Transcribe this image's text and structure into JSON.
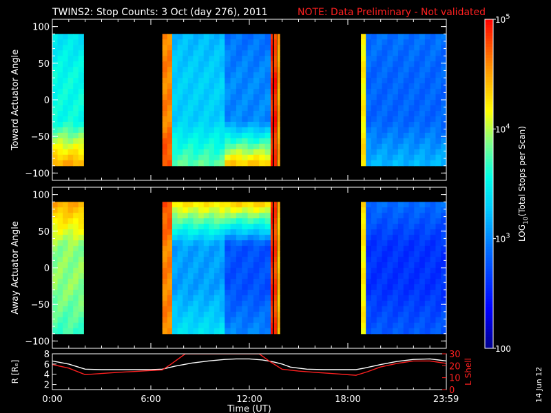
{
  "title": "TWINS2: Stop Counts:  3 Oct (day 276), 2011",
  "note": "NOTE: Data Preliminary - Not validated",
  "date_stamp": "14 Jun 12",
  "colors": {
    "background": "#000000",
    "axis": "#ffffff",
    "note": "#ff2020",
    "r_line": "#ffffff",
    "lshell_line": "#ff2020"
  },
  "chart_data": [
    {
      "type": "heatmap",
      "ylabel": "Toward Actuator Angle",
      "ylim": [
        -110,
        110
      ],
      "yticks": [
        100,
        50,
        0,
        -50,
        -100
      ],
      "ytick_labels": [
        "100",
        "50",
        "0",
        "−50",
        "−100"
      ],
      "xlim_hours": [
        0,
        24
      ],
      "data_angle_range": [
        -90,
        90
      ],
      "color_scale": "log10 counts, 100 to 1e5",
      "segments": [
        {
          "start_h": 0.0,
          "end_h": 1.9,
          "base_log": 3.55,
          "low_angle_log": 4.5,
          "high_angle_log": 3.4
        },
        {
          "start_h": 6.7,
          "end_h": 7.3,
          "base_log": 4.6,
          "low_angle_log": 4.8,
          "high_angle_log": 4.6
        },
        {
          "start_h": 7.3,
          "end_h": 10.5,
          "base_log": 3.3,
          "low_angle_log": 3.8,
          "high_angle_log": 3.2
        },
        {
          "start_h": 10.5,
          "end_h": 13.3,
          "base_log": 3.0,
          "low_angle_log": 4.4,
          "high_angle_log": 2.9
        },
        {
          "start_h": 13.3,
          "end_h": 13.4,
          "base_log": 4.9,
          "low_angle_log": 4.9,
          "high_angle_log": 4.9
        },
        {
          "start_h": 13.5,
          "end_h": 13.65,
          "base_log": 4.9,
          "low_angle_log": 4.8,
          "high_angle_log": 4.7
        },
        {
          "start_h": 13.7,
          "end_h": 13.85,
          "base_log": 4.5,
          "low_angle_log": 4.5,
          "high_angle_log": 4.5
        },
        {
          "start_h": 18.8,
          "end_h": 19.1,
          "base_log": 4.2,
          "low_angle_log": 4.3,
          "high_angle_log": 4.2
        },
        {
          "start_h": 19.1,
          "end_h": 24.0,
          "base_log": 2.85,
          "low_angle_log": 3.2,
          "high_angle_log": 2.9
        }
      ]
    },
    {
      "type": "heatmap",
      "ylabel": "Away Actuator Angle",
      "ylim": [
        -110,
        110
      ],
      "yticks": [
        100,
        50,
        0,
        -50,
        -100
      ],
      "ytick_labels": [
        "100",
        "50",
        "0",
        "−50",
        "−100"
      ],
      "xlim_hours": [
        0,
        24
      ],
      "data_angle_range": [
        -90,
        90
      ],
      "color_scale": "log10 counts, 100 to 1e5",
      "segments": [
        {
          "start_h": 0.0,
          "end_h": 1.9,
          "base_log": 3.9,
          "low_angle_log": 3.7,
          "high_angle_log": 4.5
        },
        {
          "start_h": 6.7,
          "end_h": 7.3,
          "base_log": 4.6,
          "low_angle_log": 4.6,
          "high_angle_log": 4.8
        },
        {
          "start_h": 7.3,
          "end_h": 10.5,
          "base_log": 3.1,
          "low_angle_log": 3.4,
          "high_angle_log": 4.3
        },
        {
          "start_h": 10.5,
          "end_h": 13.3,
          "base_log": 2.75,
          "low_angle_log": 3.0,
          "high_angle_log": 4.4
        },
        {
          "start_h": 13.3,
          "end_h": 13.4,
          "base_log": 4.9,
          "low_angle_log": 4.9,
          "high_angle_log": 4.9
        },
        {
          "start_h": 13.5,
          "end_h": 13.65,
          "base_log": 4.8,
          "low_angle_log": 4.8,
          "high_angle_log": 4.8
        },
        {
          "start_h": 13.7,
          "end_h": 13.85,
          "base_log": 4.4,
          "low_angle_log": 4.4,
          "high_angle_log": 4.4
        },
        {
          "start_h": 18.8,
          "end_h": 19.1,
          "base_log": 4.2,
          "low_angle_log": 4.2,
          "high_angle_log": 4.3
        },
        {
          "start_h": 19.1,
          "end_h": 24.0,
          "base_log": 2.6,
          "low_angle_log": 2.8,
          "high_angle_log": 2.9
        }
      ]
    },
    {
      "type": "line",
      "ylabel_left": "R [Rₑ]",
      "ylabel_right": "L Shell",
      "xlabel": "Time (UT)",
      "xticks_hours": [
        0,
        6,
        12,
        18,
        23.983
      ],
      "xtick_labels": [
        "0:00",
        "6:00",
        "12:00",
        "18:00",
        "23:59"
      ],
      "ylim_left": [
        1,
        8
      ],
      "yticks_left": [
        2,
        4,
        6,
        8
      ],
      "ylim_right": [
        0,
        30
      ],
      "yticks_right": [
        0,
        10,
        20,
        30
      ],
      "series": [
        {
          "axis": "left",
          "color": "#ffffff",
          "x": [
            0,
            1.0,
            2.0,
            3,
            4,
            5,
            6,
            6.7,
            7.5,
            8.5,
            9.5,
            10.5,
            11.2,
            12,
            12.8,
            13.5,
            14,
            14.5,
            15.5,
            16.5,
            17.5,
            18.5,
            19,
            20,
            21,
            22,
            23,
            24
          ],
          "values": [
            6.6,
            6.0,
            5.0,
            4.9,
            4.9,
            4.9,
            4.9,
            5.0,
            5.6,
            6.2,
            6.6,
            6.9,
            7.0,
            7.0,
            6.8,
            6.4,
            6.0,
            5.4,
            5.0,
            4.9,
            4.9,
            4.9,
            5.2,
            5.9,
            6.5,
            6.9,
            7.0,
            6.6
          ]
        },
        {
          "axis": "right",
          "color": "#ff2020",
          "x": [
            0,
            1,
            2.0,
            3,
            4,
            5,
            6,
            6.7,
            7.2,
            7.7,
            8.1,
            12.6,
            13.2,
            14.0,
            15,
            16,
            17,
            18.5,
            19.2,
            20,
            21,
            22,
            23,
            24
          ],
          "values": [
            21,
            18,
            12.5,
            13.5,
            14.5,
            15.2,
            16,
            16.5,
            21,
            26,
            30,
            30,
            24,
            17,
            15.5,
            14.5,
            13.5,
            12,
            15,
            19,
            22,
            24,
            24,
            22
          ]
        }
      ]
    },
    {
      "type": "heatmap",
      "name": "colorbar",
      "label_text": "LOG",
      "label_sub": "10",
      "label_rest": "(Total Stops per Scan)",
      "range_log": [
        2,
        5
      ],
      "tick_labels": [
        {
          "log": 5,
          "base": "10",
          "exp": "5"
        },
        {
          "log": 4,
          "base": "10",
          "exp": "4"
        },
        {
          "log": 3,
          "base": "10",
          "exp": "3"
        },
        {
          "log": 2,
          "base": "100",
          "exp": ""
        }
      ]
    }
  ]
}
